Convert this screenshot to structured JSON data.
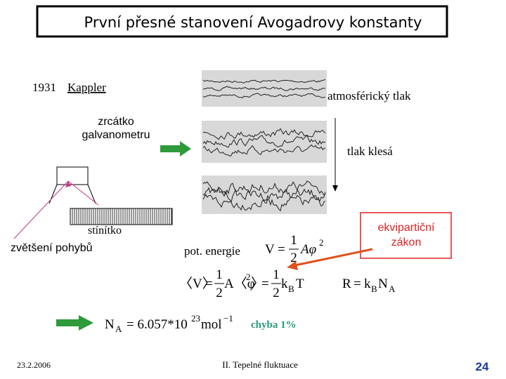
{
  "title": "První přesné stanovení Avogadrovy konstanty",
  "experiment": {
    "year": "1931",
    "author": "Kappler"
  },
  "labels": {
    "atmospheric": "atmosférický tlak",
    "mirror": [
      "zrcátko",
      "galvanometru"
    ],
    "pressure_drop": "tlak klesá",
    "screen": "stínítko",
    "magnification": "zvětšení pohybů",
    "potential_energy": "pot. energie",
    "equipartition": [
      "ekvipartiční",
      "zákon"
    ],
    "error": "chyba 1%"
  },
  "formulas": {
    "potential": [
      "V",
      "=",
      "1",
      "2",
      "Aφ",
      "2"
    ],
    "mean": [
      "〈V〉",
      "=",
      "1",
      "2",
      "A〈φ",
      "2",
      "〉",
      "=",
      "1",
      "2",
      "k",
      "B",
      "T"
    ],
    "gas_constant": [
      "R",
      "=",
      "k",
      "B",
      "N",
      "A"
    ],
    "avogadro": [
      "N",
      "A",
      "= 6.057*10",
      "23",
      "mol",
      "−1"
    ]
  },
  "footer": {
    "date": "23.2.2006",
    "section": "II. Tepelné fluktuace",
    "page": "24"
  }
}
